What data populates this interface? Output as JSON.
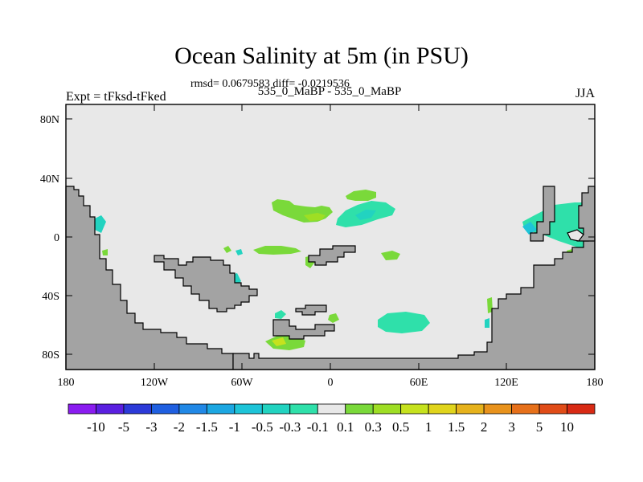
{
  "title": "Ocean Salinity at 5m (in PSU)",
  "stats": "rmsd= 0.0679583 diff= -0.0219536",
  "case_label": "535_0_MaBP - 535_0_MaBP",
  "experiment": "Expt = tFksd-tFked",
  "season": "JJA",
  "lat_ticks": [
    "80N",
    "40N",
    "0",
    "40S",
    "80S"
  ],
  "lon_ticks": [
    "180",
    "120W",
    "60W",
    "0",
    "60E",
    "120E",
    "180"
  ],
  "colorbar": {
    "labels": [
      "-10",
      "-5",
      "-3",
      "-2",
      "-1.5",
      "-1",
      "-0.5",
      "-0.3",
      "-0.1",
      "0.1",
      "0.3",
      "0.5",
      "1",
      "1.5",
      "2",
      "3",
      "5",
      "10"
    ],
    "colors": [
      "#8a1cf0",
      "#5a1fe0",
      "#2c3ad8",
      "#1f5fe0",
      "#2188e6",
      "#1ca7e2",
      "#1dc4d8",
      "#22d3c0",
      "#2fe0aa",
      "#e8e8e8",
      "#7ad93a",
      "#9ede24",
      "#c6e21e",
      "#e0d41c",
      "#e6b21c",
      "#e8921c",
      "#e6701a",
      "#e04c18",
      "#d82a14"
    ]
  },
  "colors": {
    "ocean": "#e8e8e8",
    "land": "#a3a3a3"
  }
}
